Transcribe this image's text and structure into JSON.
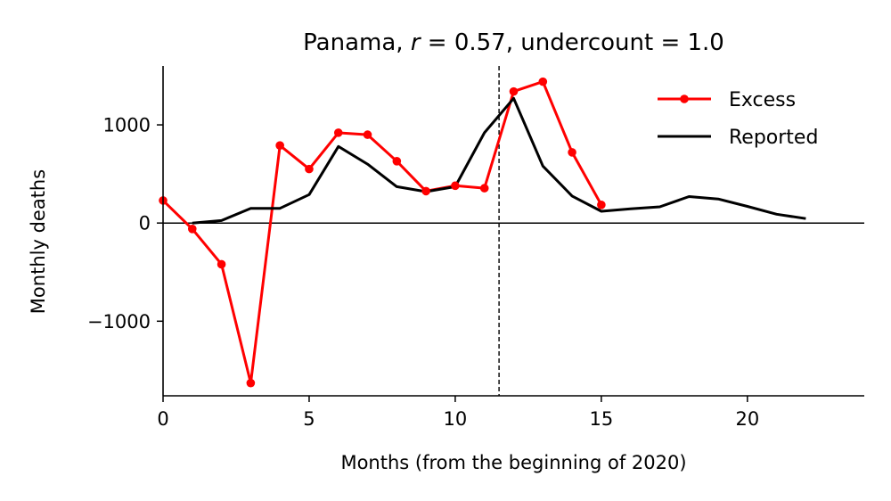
{
  "chart_data": {
    "type": "line",
    "title": {
      "prefix": "Panama, ",
      "r_symbol": "r",
      "r_value": " = 0.57, undercount = 1.0"
    },
    "xlabel": "Months (from the beginning of 2020)",
    "ylabel": "Monthly deaths",
    "xlim": [
      0,
      24
    ],
    "ylim": [
      -1760,
      1600
    ],
    "xticks": [
      0,
      5,
      10,
      15,
      20
    ],
    "yticks": [
      -1000,
      0,
      1000
    ],
    "ytick_labels": [
      "−1000",
      "0",
      "1000"
    ],
    "grid": false,
    "legend_position": "top-right",
    "hline": 0,
    "vline": 11.5,
    "series": [
      {
        "name": "Excess",
        "color": "#ff0000",
        "marker": "circle",
        "x": [
          0,
          1,
          2,
          3,
          4,
          5,
          6,
          7,
          8,
          9,
          10,
          11,
          12,
          13,
          14,
          15
        ],
        "y": [
          230,
          -60,
          -420,
          -1630,
          790,
          550,
          920,
          900,
          630,
          325,
          380,
          355,
          1340,
          1440,
          720,
          185
        ]
      },
      {
        "name": "Reported",
        "color": "#000000",
        "marker": "none",
        "x": [
          1,
          2,
          3,
          4,
          5,
          6,
          7,
          8,
          9,
          10,
          11,
          12,
          13,
          14,
          15,
          16,
          17,
          18,
          19,
          20,
          21,
          22
        ],
        "y": [
          0,
          25,
          150,
          150,
          290,
          780,
          600,
          370,
          320,
          370,
          920,
          1270,
          580,
          275,
          120,
          145,
          165,
          270,
          245,
          170,
          90,
          45
        ]
      }
    ]
  }
}
